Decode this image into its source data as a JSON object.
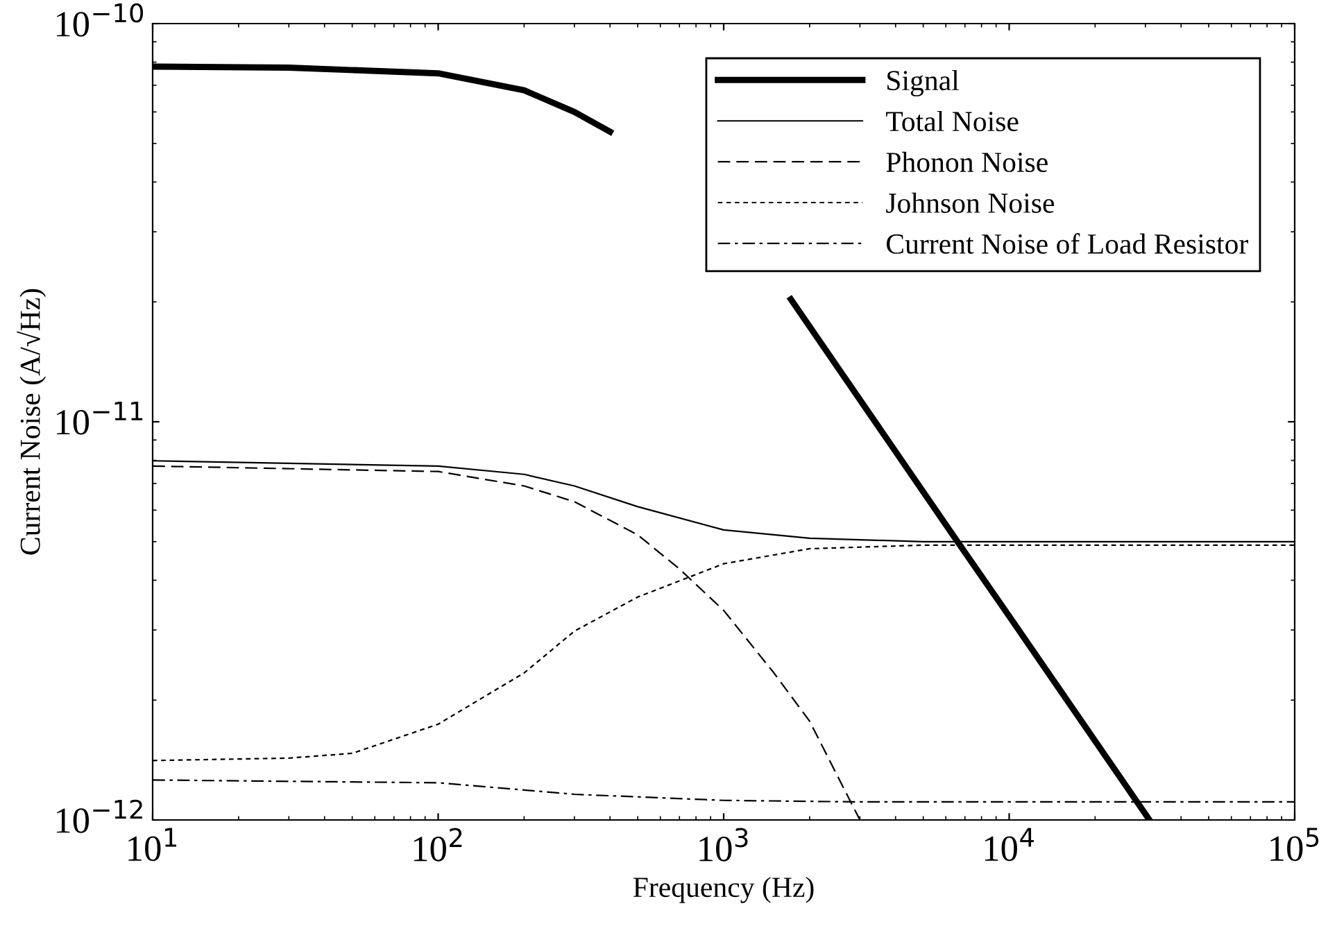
{
  "chart_data": {
    "type": "line",
    "xlabel": "Frequency (Hz)",
    "ylabel": "Current Noise (A/√Hz)",
    "log": "xy",
    "grid": false,
    "legend": "top right",
    "xlim": [
      10,
      100000
    ],
    "ylim": [
      1e-12,
      1e-10
    ],
    "xticks": [
      {
        "value": 10,
        "label": "10$^{1}$"
      },
      {
        "value": 100,
        "label": "10$^{2}$"
      },
      {
        "value": 1000,
        "label": "10$^{3}$"
      },
      {
        "value": 10000,
        "label": "10$^{4}$"
      },
      {
        "value": 100000,
        "label": "10$^{5}$"
      }
    ],
    "yticks": [
      {
        "value": 1e-12,
        "label": "10$^{−12}$"
      },
      {
        "value": 1e-11,
        "label": "10$^{−11}$"
      },
      {
        "value": 1e-10,
        "label": "10$^{−10}$"
      }
    ],
    "series": [
      {
        "name": "Signal",
        "color": "#000000",
        "line_style": "solid",
        "x": [
          10,
          30,
          100,
          200,
          300,
          400,
          1000,
          1720,
          6590,
          10000,
          31000
        ],
        "values": [
          7.8e-11,
          7.75e-11,
          7.5e-11,
          6.8e-11,
          6e-11,
          5.35e-11,
          null,
          2.03e-11,
          5e-12,
          3.25e-12,
          1e-12
        ]
      },
      {
        "name": "Total Noise",
        "color": "#000000",
        "line_style": "solid",
        "x": [
          10,
          100,
          200,
          300,
          500,
          1000,
          2000,
          5000,
          100000
        ],
        "values": [
          7.98e-12,
          7.74e-12,
          7.38e-12,
          6.9e-12,
          6.12e-12,
          5.35e-12,
          5.1e-12,
          5e-12,
          5e-12
        ]
      },
      {
        "name": "Phonon Noise",
        "color": "#000000",
        "line_style": "dashed",
        "x": [
          10,
          100,
          200,
          300,
          500,
          700,
          1000,
          1500,
          2000,
          3000
        ],
        "values": [
          7.74e-12,
          7.5e-12,
          6.9e-12,
          6.3e-12,
          5.2e-12,
          4.27e-12,
          3.36e-12,
          2.34e-12,
          1.77e-12,
          1e-12
        ]
      },
      {
        "name": "Johnson Noise",
        "color": "#000000",
        "line_style": "dotted",
        "x": [
          10,
          30,
          50,
          100,
          200,
          300,
          500,
          1000,
          2000,
          5000,
          100000
        ],
        "values": [
          1.41e-12,
          1.43e-12,
          1.47e-12,
          1.74e-12,
          2.34e-12,
          2.98e-12,
          3.63e-12,
          4.4e-12,
          4.8e-12,
          4.9e-12,
          4.9e-12
        ]
      },
      {
        "name": "Current Noise of Load Resistor",
        "color": "#000000",
        "line_style": "dashdot",
        "x": [
          10,
          100,
          300,
          1000,
          3000,
          100000
        ],
        "values": [
          1.26e-12,
          1.24e-12,
          1.16e-12,
          1.12e-12,
          1.11e-12,
          1.11e-12
        ]
      }
    ]
  }
}
